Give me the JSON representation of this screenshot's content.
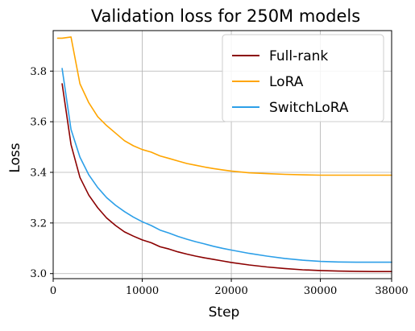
{
  "chart_data": {
    "type": "line",
    "title": "Validation loss for 250M models",
    "xlabel": "Step",
    "ylabel": "Loss",
    "xlim": [
      0,
      38000
    ],
    "ylim": [
      2.98,
      3.96
    ],
    "xticks": [
      0,
      10000,
      20000,
      30000,
      38000
    ],
    "xtick_labels": [
      "0",
      "10000",
      "20000",
      "30000",
      "38000"
    ],
    "yticks": [
      3.0,
      3.2,
      3.4,
      3.6,
      3.8
    ],
    "ytick_labels": [
      "3.0",
      "3.2",
      "3.4",
      "3.6",
      "3.8"
    ],
    "grid": true,
    "legend_position": "top-right",
    "series": [
      {
        "name": "Full-rank",
        "color": "#8b0000",
        "x": [
          1000,
          2000,
          3000,
          4000,
          5000,
          6000,
          7000,
          8000,
          9000,
          10000,
          11000,
          12000,
          13000,
          14000,
          15000,
          16000,
          17000,
          18000,
          19000,
          20000,
          22000,
          24000,
          26000,
          28000,
          30000,
          32000,
          34000,
          36000,
          38000
        ],
        "y": [
          3.75,
          3.51,
          3.38,
          3.31,
          3.26,
          3.22,
          3.19,
          3.165,
          3.148,
          3.133,
          3.122,
          3.106,
          3.097,
          3.086,
          3.077,
          3.069,
          3.062,
          3.056,
          3.05,
          3.044,
          3.034,
          3.026,
          3.02,
          3.015,
          3.012,
          3.01,
          3.009,
          3.008,
          3.008
        ]
      },
      {
        "name": "LoRA",
        "color": "#ffa500",
        "x": [
          500,
          1000,
          2000,
          3000,
          4000,
          5000,
          6000,
          7000,
          8000,
          9000,
          10000,
          11000,
          12000,
          13000,
          14000,
          15000,
          16000,
          17000,
          18000,
          19000,
          20000,
          22000,
          24000,
          26000,
          28000,
          30000,
          32000,
          34000,
          36000,
          38000
        ],
        "y": [
          3.93,
          3.93,
          3.935,
          3.75,
          3.675,
          3.62,
          3.585,
          3.555,
          3.525,
          3.505,
          3.49,
          3.48,
          3.465,
          3.455,
          3.445,
          3.435,
          3.428,
          3.421,
          3.415,
          3.41,
          3.405,
          3.398,
          3.395,
          3.392,
          3.39,
          3.389,
          3.389,
          3.389,
          3.389,
          3.389
        ]
      },
      {
        "name": "SwitchLoRA",
        "color": "#2c9fe8",
        "x": [
          1000,
          2000,
          3000,
          4000,
          5000,
          6000,
          7000,
          8000,
          9000,
          10000,
          11000,
          12000,
          13000,
          14000,
          15000,
          16000,
          17000,
          18000,
          19000,
          20000,
          22000,
          24000,
          26000,
          28000,
          30000,
          32000,
          34000,
          36000,
          38000
        ],
        "y": [
          3.81,
          3.57,
          3.46,
          3.39,
          3.34,
          3.3,
          3.27,
          3.245,
          3.223,
          3.205,
          3.19,
          3.172,
          3.16,
          3.147,
          3.136,
          3.126,
          3.117,
          3.108,
          3.1,
          3.093,
          3.08,
          3.069,
          3.06,
          3.053,
          3.048,
          3.046,
          3.045,
          3.045,
          3.045
        ]
      }
    ]
  }
}
